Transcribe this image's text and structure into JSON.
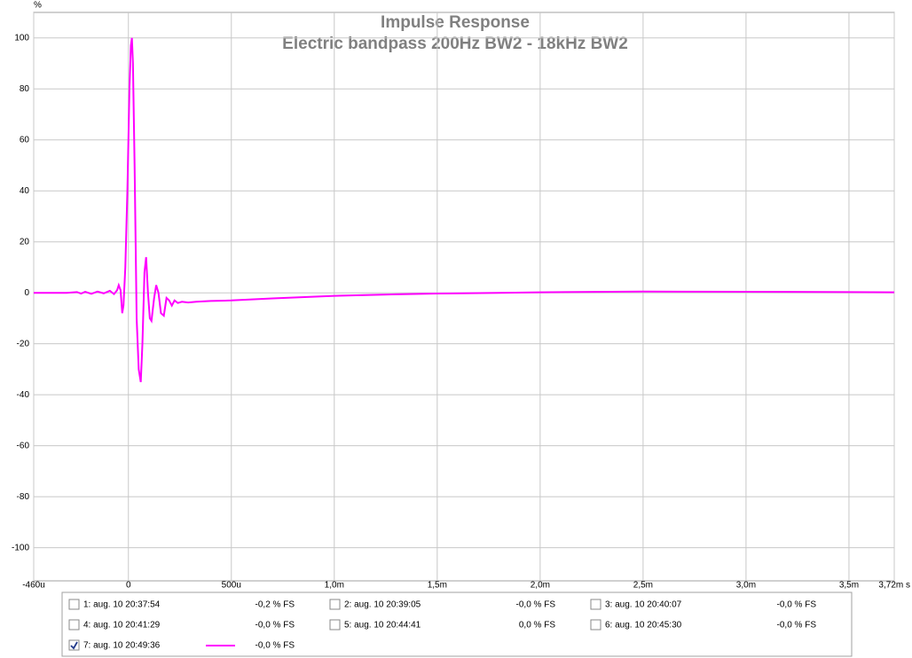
{
  "chart_data": {
    "type": "line",
    "title": "Impulse Response",
    "subtitle": "Electric bandpass 200Hz BW2 - 18kHz BW2",
    "y_unit": "%",
    "x": [
      -460,
      -300,
      -250,
      -230,
      -210,
      -180,
      -150,
      -120,
      -90,
      -70,
      -55,
      -47,
      -38,
      -30,
      -24,
      -15,
      -5,
      5,
      12,
      17,
      22,
      30,
      40,
      50,
      60,
      68,
      78,
      86,
      95,
      104,
      112,
      125,
      135,
      146,
      158,
      172,
      185,
      198,
      211,
      224,
      240,
      260,
      290,
      330,
      400,
      500,
      700,
      1000,
      1300,
      1500,
      1800,
      2000,
      2500,
      3000,
      3500,
      3720
    ],
    "series": [
      {
        "color": "#ff00ff",
        "values": [
          0,
          0,
          0.3,
          -0.3,
          0.4,
          -0.4,
          0.5,
          -0.2,
          0.8,
          -0.5,
          1,
          3,
          1,
          -8,
          -5,
          10,
          40,
          80,
          97,
          100,
          90,
          50,
          -10,
          -30,
          -35,
          -20,
          8,
          14,
          0,
          -10,
          -11,
          -2,
          3,
          0,
          -8,
          -9,
          -2,
          -3,
          -5,
          -3,
          -4,
          -3.5,
          -3.8,
          -3.5,
          -3.2,
          -3,
          -2.2,
          -1.2,
          -0.6,
          -0.3,
          0,
          0.2,
          0.5,
          0.4,
          0.3,
          0.2
        ]
      }
    ],
    "xlim": [
      -460,
      3720
    ],
    "xticks": [
      {
        "value": -460,
        "label": "-460u"
      },
      0,
      {
        "value": 500,
        "label": "500u"
      },
      {
        "value": 1000,
        "label": "1,0m"
      },
      {
        "value": 1500,
        "label": "1,5m"
      },
      {
        "value": 2000,
        "label": "2,0m"
      },
      {
        "value": 2500,
        "label": "2,5m"
      },
      {
        "value": 3000,
        "label": "3,0m"
      },
      {
        "value": 3500,
        "label": "3,5m"
      },
      {
        "value": 3720,
        "label": "3,72m s"
      }
    ],
    "ylim": [
      -113,
      110
    ],
    "yticks": [
      -100,
      -80,
      -60,
      -40,
      -20,
      0,
      20,
      40,
      60,
      80,
      100
    ],
    "grid": true,
    "legend": [
      {
        "label": "1: aug. 10 20:37:54",
        "level": "-0,2 % FS",
        "color": "#999999",
        "checked": false
      },
      {
        "label": "2: aug. 10 20:39:05",
        "level": "-0,0 % FS",
        "color": "#a0a000",
        "checked": false
      },
      {
        "label": "3: aug. 10 20:40:07",
        "level": "-0,0 % FS",
        "color": "#800000",
        "checked": false
      },
      {
        "label": "4: aug. 10 20:41:29",
        "level": "-0,0 % FS",
        "color": "#999999",
        "checked": false
      },
      {
        "label": "5: aug. 10 20:44:41",
        "level": "0,0 % FS",
        "color": "#000000",
        "checked": false
      },
      {
        "label": "6: aug. 10 20:45:30",
        "level": "-0,0 % FS",
        "color": "#a00000",
        "checked": false
      },
      {
        "label": "7: aug. 10 20:49:36",
        "level": "-0,0 % FS",
        "color": "#ff00ff",
        "checked": true
      }
    ]
  }
}
